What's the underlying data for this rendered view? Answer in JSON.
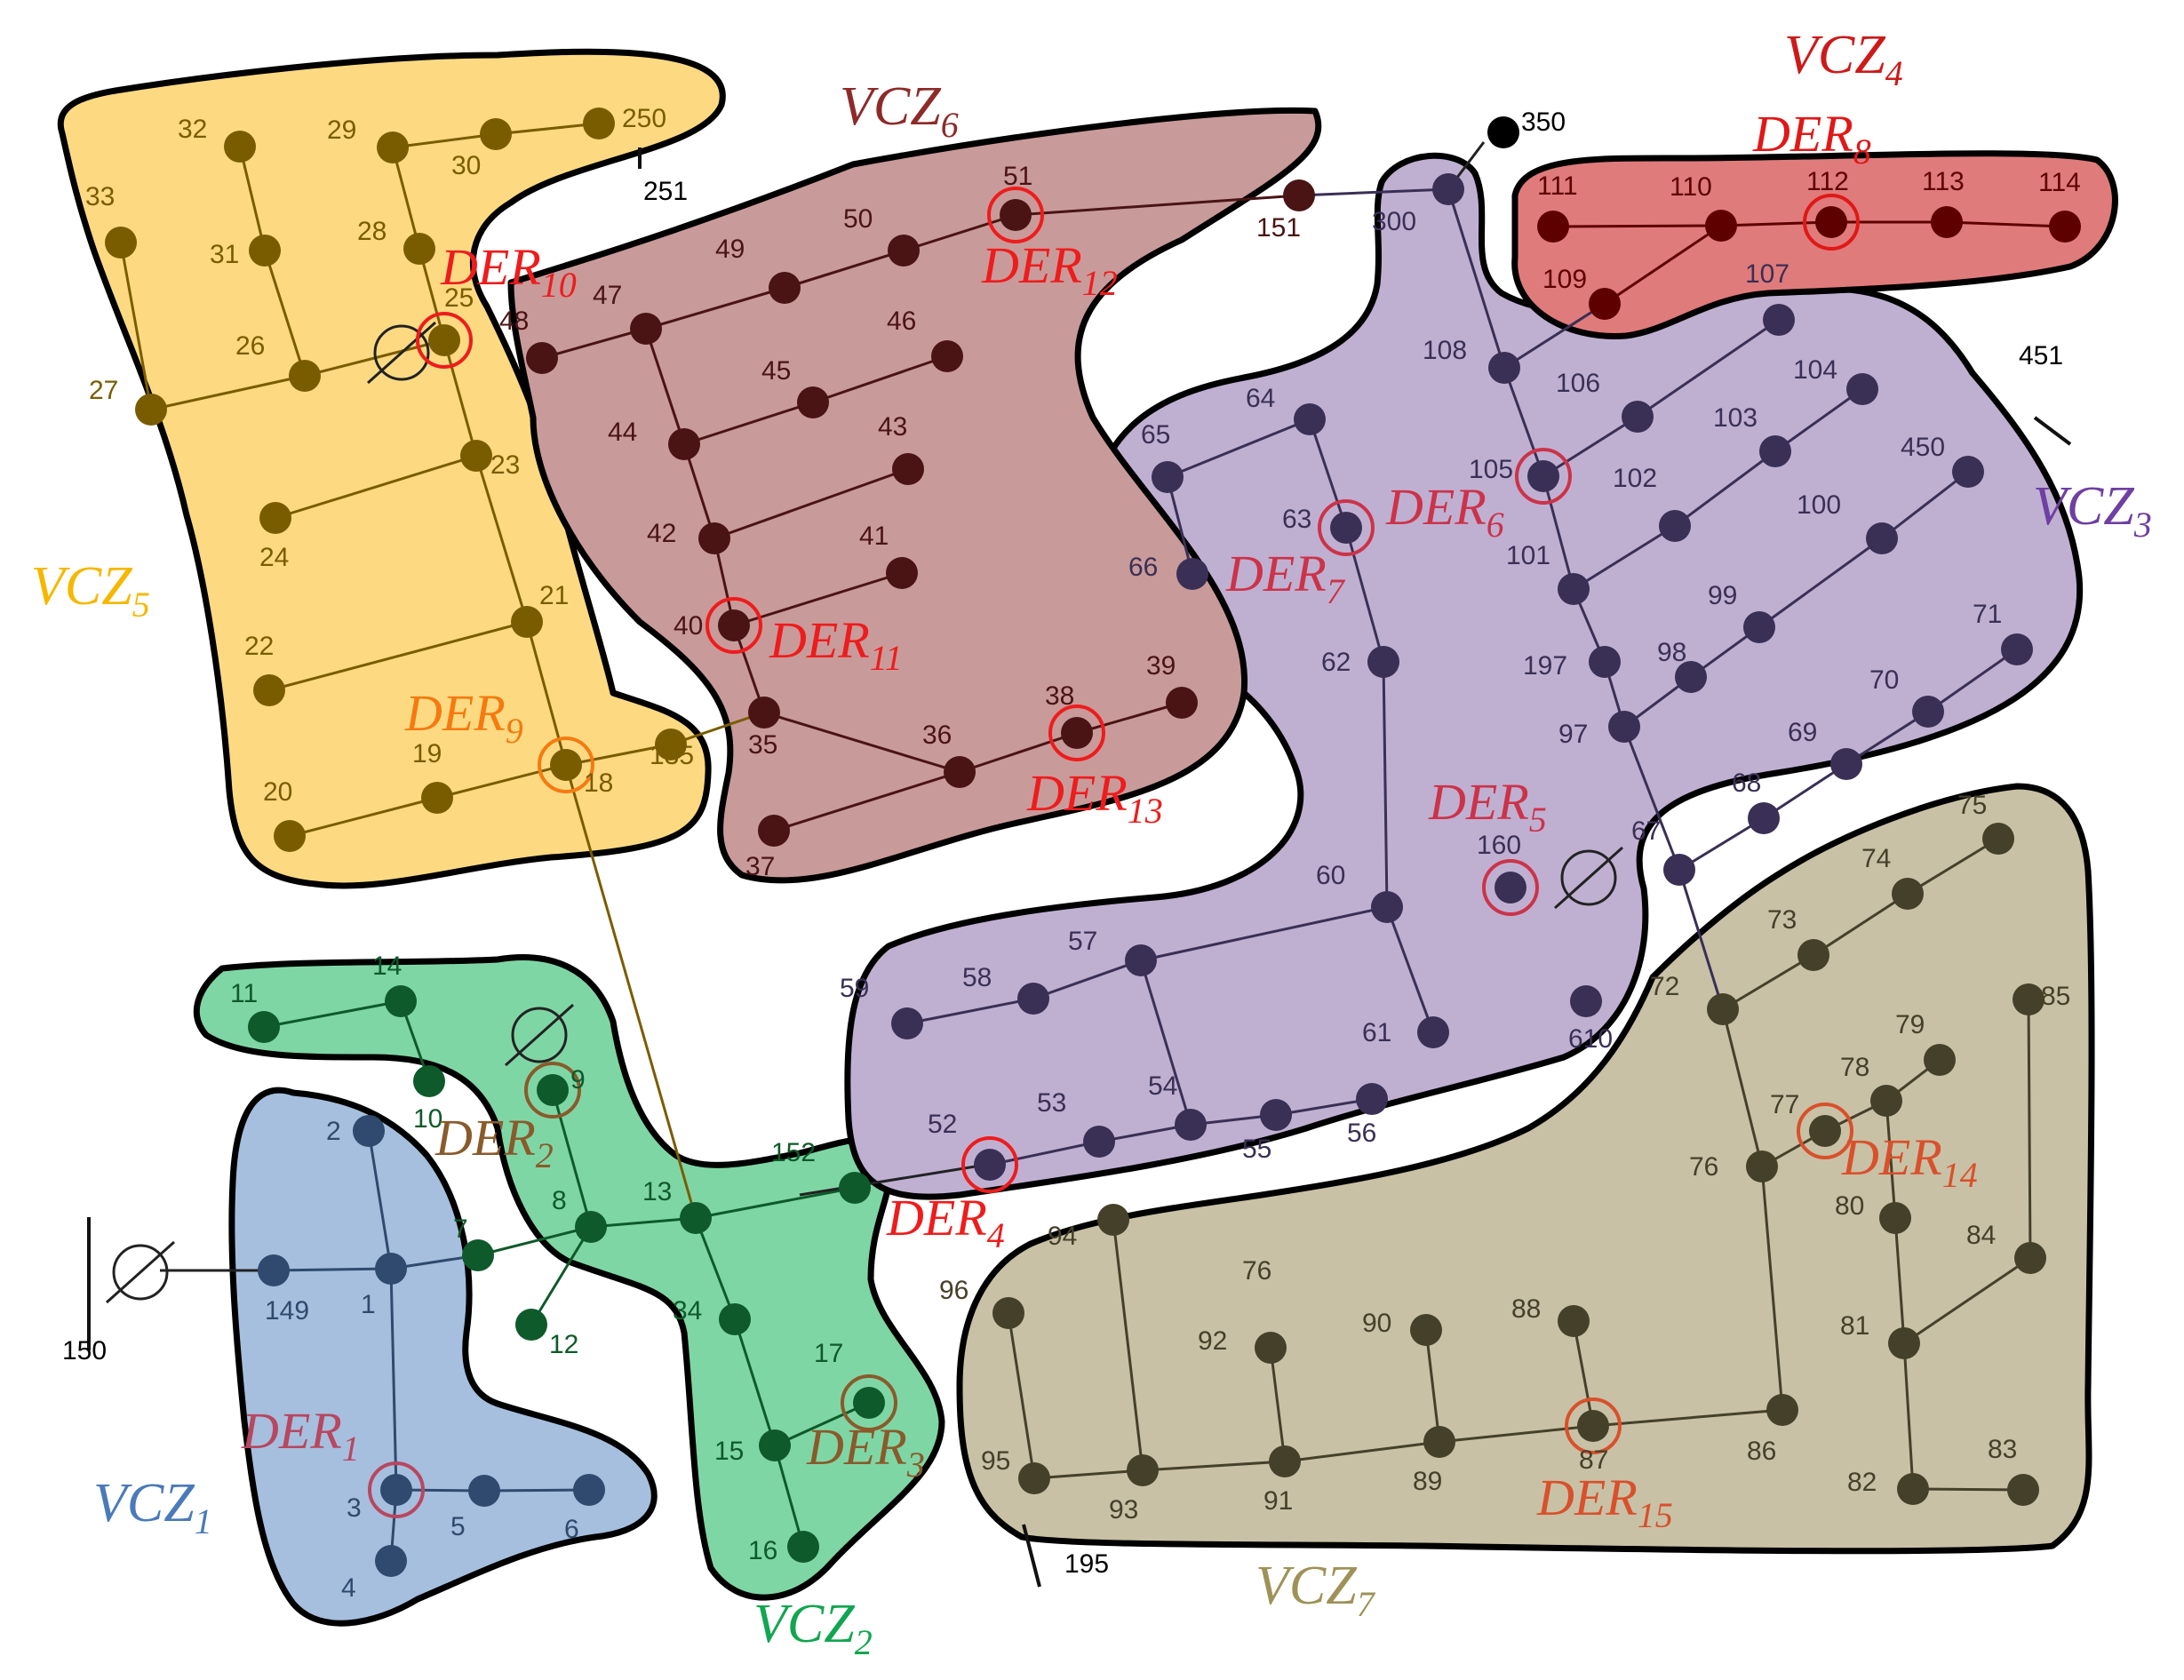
{
  "zones": [
    {
      "id": "VCZ1",
      "label": "VCZ",
      "sub": "1",
      "fill": "#a6bfde",
      "color": "#2f4a6e",
      "text_color": "#4a7ab8"
    },
    {
      "id": "VCZ2",
      "label": "VCZ",
      "sub": "2",
      "fill": "#7fd6a5",
      "color": "#0e5a2a",
      "text_color": "#12a650"
    },
    {
      "id": "VCZ3",
      "label": "VCZ",
      "sub": "3",
      "fill": "#bfb0d2",
      "color": "#3a2f55",
      "text_color": "#6f3fa2"
    },
    {
      "id": "VCZ4",
      "label": "VCZ",
      "sub": "4",
      "fill": "#e07b7b",
      "color": "#5e0000",
      "text_color": "#cc1a1a"
    },
    {
      "id": "VCZ5",
      "label": "VCZ",
      "sub": "5",
      "fill": "#fdda82",
      "color": "#7a5c00",
      "text_color": "#f5b800"
    },
    {
      "id": "VCZ6",
      "label": "VCZ",
      "sub": "6",
      "fill": "#c99a9a",
      "color": "#4a1414",
      "text_color": "#8e2a2a"
    },
    {
      "id": "VCZ7",
      "label": "VCZ",
      "sub": "7",
      "fill": "#c8c1a6",
      "color": "#45402a",
      "text_color": "#9e9258"
    }
  ],
  "nodes": [
    {
      "name": "1",
      "zone": "VCZ1"
    },
    {
      "name": "2",
      "zone": "VCZ1"
    },
    {
      "name": "3",
      "zone": "VCZ1"
    },
    {
      "name": "4",
      "zone": "VCZ1"
    },
    {
      "name": "5",
      "zone": "VCZ1"
    },
    {
      "name": "6",
      "zone": "VCZ1"
    },
    {
      "name": "149",
      "zone": "VCZ1"
    },
    {
      "name": "7",
      "zone": "VCZ2"
    },
    {
      "name": "8",
      "zone": "VCZ2"
    },
    {
      "name": "9",
      "zone": "VCZ2"
    },
    {
      "name": "10",
      "zone": "VCZ2"
    },
    {
      "name": "11",
      "zone": "VCZ2"
    },
    {
      "name": "12",
      "zone": "VCZ2"
    },
    {
      "name": "13",
      "zone": "VCZ2"
    },
    {
      "name": "14",
      "zone": "VCZ2"
    },
    {
      "name": "15",
      "zone": "VCZ2"
    },
    {
      "name": "16",
      "zone": "VCZ2"
    },
    {
      "name": "17",
      "zone": "VCZ2"
    },
    {
      "name": "34",
      "zone": "VCZ2"
    },
    {
      "name": "152",
      "zone": "VCZ2"
    },
    {
      "name": "18",
      "zone": "VCZ5"
    },
    {
      "name": "19",
      "zone": "VCZ5"
    },
    {
      "name": "20",
      "zone": "VCZ5"
    },
    {
      "name": "21",
      "zone": "VCZ5"
    },
    {
      "name": "22",
      "zone": "VCZ5"
    },
    {
      "name": "23",
      "zone": "VCZ5"
    },
    {
      "name": "24",
      "zone": "VCZ5"
    },
    {
      "name": "25",
      "zone": "VCZ5"
    },
    {
      "name": "26",
      "zone": "VCZ5"
    },
    {
      "name": "27",
      "zone": "VCZ5"
    },
    {
      "name": "28",
      "zone": "VCZ5"
    },
    {
      "name": "29",
      "zone": "VCZ5"
    },
    {
      "name": "30",
      "zone": "VCZ5"
    },
    {
      "name": "31",
      "zone": "VCZ5"
    },
    {
      "name": "32",
      "zone": "VCZ5"
    },
    {
      "name": "33",
      "zone": "VCZ5"
    },
    {
      "name": "135",
      "zone": "VCZ5"
    },
    {
      "name": "250",
      "zone": "VCZ5"
    },
    {
      "name": "35",
      "zone": "VCZ6"
    },
    {
      "name": "36",
      "zone": "VCZ6"
    },
    {
      "name": "37",
      "zone": "VCZ6"
    },
    {
      "name": "38",
      "zone": "VCZ6"
    },
    {
      "name": "39",
      "zone": "VCZ6"
    },
    {
      "name": "40",
      "zone": "VCZ6"
    },
    {
      "name": "41",
      "zone": "VCZ6"
    },
    {
      "name": "42",
      "zone": "VCZ6"
    },
    {
      "name": "43",
      "zone": "VCZ6"
    },
    {
      "name": "44",
      "zone": "VCZ6"
    },
    {
      "name": "45",
      "zone": "VCZ6"
    },
    {
      "name": "46",
      "zone": "VCZ6"
    },
    {
      "name": "47",
      "zone": "VCZ6"
    },
    {
      "name": "48",
      "zone": "VCZ6"
    },
    {
      "name": "49",
      "zone": "VCZ6"
    },
    {
      "name": "50",
      "zone": "VCZ6"
    },
    {
      "name": "51",
      "zone": "VCZ6"
    },
    {
      "name": "151",
      "zone": "VCZ6"
    },
    {
      "name": "52",
      "zone": "VCZ3"
    },
    {
      "name": "53",
      "zone": "VCZ3"
    },
    {
      "name": "54",
      "zone": "VCZ3"
    },
    {
      "name": "55",
      "zone": "VCZ3"
    },
    {
      "name": "56",
      "zone": "VCZ3"
    },
    {
      "name": "57",
      "zone": "VCZ3"
    },
    {
      "name": "58",
      "zone": "VCZ3"
    },
    {
      "name": "59",
      "zone": "VCZ3"
    },
    {
      "name": "60",
      "zone": "VCZ3"
    },
    {
      "name": "61",
      "zone": "VCZ3"
    },
    {
      "name": "62",
      "zone": "VCZ3"
    },
    {
      "name": "63",
      "zone": "VCZ3"
    },
    {
      "name": "64",
      "zone": "VCZ3"
    },
    {
      "name": "65",
      "zone": "VCZ3"
    },
    {
      "name": "66",
      "zone": "VCZ3"
    },
    {
      "name": "67",
      "zone": "VCZ3"
    },
    {
      "name": "68",
      "zone": "VCZ3"
    },
    {
      "name": "69",
      "zone": "VCZ3"
    },
    {
      "name": "70",
      "zone": "VCZ3"
    },
    {
      "name": "71",
      "zone": "VCZ3"
    },
    {
      "name": "97",
      "zone": "VCZ3"
    },
    {
      "name": "98",
      "zone": "VCZ3"
    },
    {
      "name": "99",
      "zone": "VCZ3"
    },
    {
      "name": "100",
      "zone": "VCZ3"
    },
    {
      "name": "101",
      "zone": "VCZ3"
    },
    {
      "name": "102",
      "zone": "VCZ3"
    },
    {
      "name": "103",
      "zone": "VCZ3"
    },
    {
      "name": "104",
      "zone": "VCZ3"
    },
    {
      "name": "105",
      "zone": "VCZ3"
    },
    {
      "name": "106",
      "zone": "VCZ3"
    },
    {
      "name": "107",
      "zone": "VCZ3"
    },
    {
      "name": "108",
      "zone": "VCZ3"
    },
    {
      "name": "160",
      "zone": "VCZ3"
    },
    {
      "name": "197",
      "zone": "VCZ3"
    },
    {
      "name": "300",
      "zone": "VCZ3"
    },
    {
      "name": "450",
      "zone": "VCZ3"
    },
    {
      "name": "610",
      "zone": "VCZ3"
    },
    {
      "name": "109",
      "zone": "VCZ4"
    },
    {
      "name": "110",
      "zone": "VCZ4"
    },
    {
      "name": "111",
      "zone": "VCZ4"
    },
    {
      "name": "112",
      "zone": "VCZ4"
    },
    {
      "name": "113",
      "zone": "VCZ4"
    },
    {
      "name": "114",
      "zone": "VCZ4"
    },
    {
      "name": "72",
      "zone": "VCZ7"
    },
    {
      "name": "73",
      "zone": "VCZ7"
    },
    {
      "name": "74",
      "zone": "VCZ7"
    },
    {
      "name": "75",
      "zone": "VCZ7"
    },
    {
      "name": "76",
      "zone": "VCZ7"
    },
    {
      "name": "77",
      "zone": "VCZ7"
    },
    {
      "name": "78",
      "zone": "VCZ7"
    },
    {
      "name": "79",
      "zone": "VCZ7"
    },
    {
      "name": "80",
      "zone": "VCZ7"
    },
    {
      "name": "81",
      "zone": "VCZ7"
    },
    {
      "name": "82",
      "zone": "VCZ7"
    },
    {
      "name": "83",
      "zone": "VCZ7"
    },
    {
      "name": "84",
      "zone": "VCZ7"
    },
    {
      "name": "85",
      "zone": "VCZ7"
    },
    {
      "name": "86",
      "zone": "VCZ7"
    },
    {
      "name": "87",
      "zone": "VCZ7"
    },
    {
      "name": "88",
      "zone": "VCZ7"
    },
    {
      "name": "89",
      "zone": "VCZ7"
    },
    {
      "name": "90",
      "zone": "VCZ7"
    },
    {
      "name": "91",
      "zone": "VCZ7"
    },
    {
      "name": "92",
      "zone": "VCZ7"
    },
    {
      "name": "93",
      "zone": "VCZ7"
    },
    {
      "name": "94",
      "zone": "VCZ7"
    },
    {
      "name": "95",
      "zone": "VCZ7"
    },
    {
      "name": "96",
      "zone": "VCZ7"
    },
    {
      "name": "350",
      "zone": "none"
    }
  ],
  "external_labels": [
    "150",
    "195",
    "251",
    "451"
  ],
  "zone_texts": [
    "76"
  ],
  "ders": [
    {
      "label": "DER",
      "sub": "1",
      "at": "3",
      "color": "#b8475f"
    },
    {
      "label": "DER",
      "sub": "2",
      "at": "9",
      "color": "#8a5a2b"
    },
    {
      "label": "DER",
      "sub": "3",
      "at": "17",
      "color": "#8a5a2b"
    },
    {
      "label": "DER",
      "sub": "4",
      "at": "52",
      "color": "#ee1c1c"
    },
    {
      "label": "DER",
      "sub": "5",
      "at": "160",
      "color": "#cc3348"
    },
    {
      "label": "DER",
      "sub": "6",
      "at": "105",
      "color": "#cc3348"
    },
    {
      "label": "DER",
      "sub": "7",
      "at": "63",
      "color": "#cc3348"
    },
    {
      "label": "DER",
      "sub": "8",
      "at": "112",
      "color": "#e01818"
    },
    {
      "label": "DER",
      "sub": "9",
      "at": "18",
      "color": "#f57a10"
    },
    {
      "label": "DER",
      "sub": "10",
      "at": "25",
      "color": "#ee1c1c"
    },
    {
      "label": "DER",
      "sub": "11",
      "at": "40",
      "color": "#ee1c1c"
    },
    {
      "label": "DER",
      "sub": "12",
      "at": "51",
      "color": "#ee1c1c"
    },
    {
      "label": "DER",
      "sub": "13",
      "at": "38",
      "color": "#ee1c1c"
    },
    {
      "label": "DER",
      "sub": "14",
      "at": "77",
      "color": "#d9502b"
    },
    {
      "label": "DER",
      "sub": "15",
      "at": "87",
      "color": "#d9502b"
    }
  ]
}
